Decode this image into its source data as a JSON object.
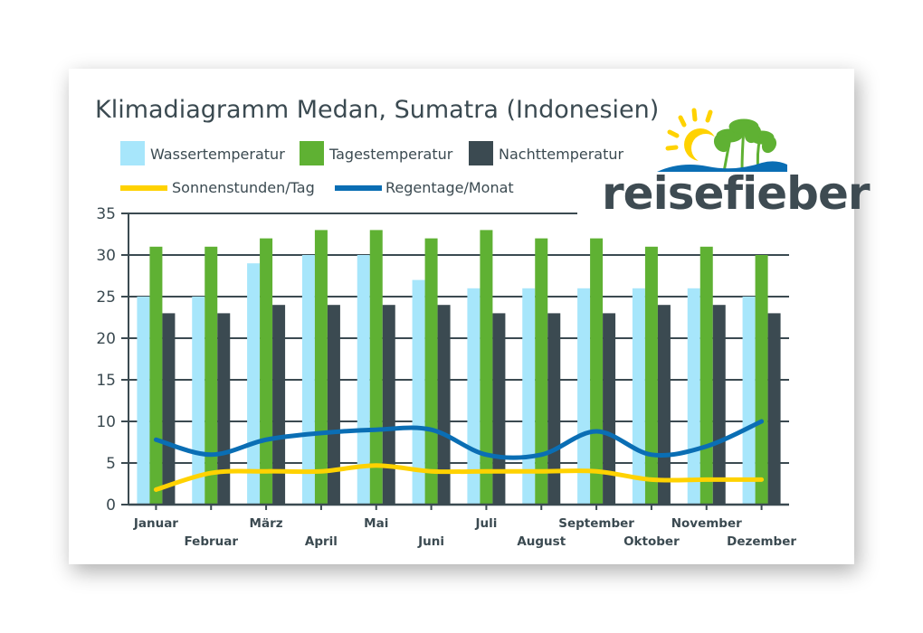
{
  "chart_data": {
    "type": "bar",
    "title": "Klimadiagramm Medan, Sumatra (Indonesien)",
    "categories": [
      "Januar",
      "Februar",
      "März",
      "April",
      "Mai",
      "Juni",
      "Juli",
      "August",
      "September",
      "Oktober",
      "November",
      "Dezember"
    ],
    "ylim": [
      0,
      35
    ],
    "yticks": [
      0,
      5,
      10,
      15,
      20,
      25,
      30,
      35
    ],
    "grid": true,
    "legend_position": "top-left",
    "series": [
      {
        "name": "Wassertemperatur",
        "kind": "bar",
        "color": "#a7e6fb",
        "values": [
          25,
          25,
          29,
          30,
          30,
          27,
          26,
          26,
          26,
          26,
          26,
          25
        ]
      },
      {
        "name": "Tagestemperatur",
        "kind": "bar",
        "color": "#5fb133",
        "values": [
          31,
          31,
          32,
          33,
          33,
          32,
          33,
          32,
          32,
          31,
          31,
          30
        ]
      },
      {
        "name": "Nachttemperatur",
        "kind": "bar",
        "color": "#3b4a51",
        "values": [
          23,
          23,
          24,
          24,
          24,
          24,
          23,
          23,
          23,
          24,
          24,
          23
        ]
      },
      {
        "name": "Sonnenstunden/Tag",
        "kind": "line",
        "color": "#ffd200",
        "values": [
          1.8,
          3.8,
          4,
          4,
          4.7,
          4,
          4,
          4,
          4,
          3,
          3,
          3
        ]
      },
      {
        "name": "Regentage/Monat",
        "kind": "line",
        "color": "#0a6eb4",
        "values": [
          7.8,
          6,
          7.8,
          8.6,
          9,
          9,
          6,
          6,
          8.8,
          6,
          7,
          10
        ]
      }
    ]
  },
  "logo": {
    "text": "reisefieber"
  }
}
